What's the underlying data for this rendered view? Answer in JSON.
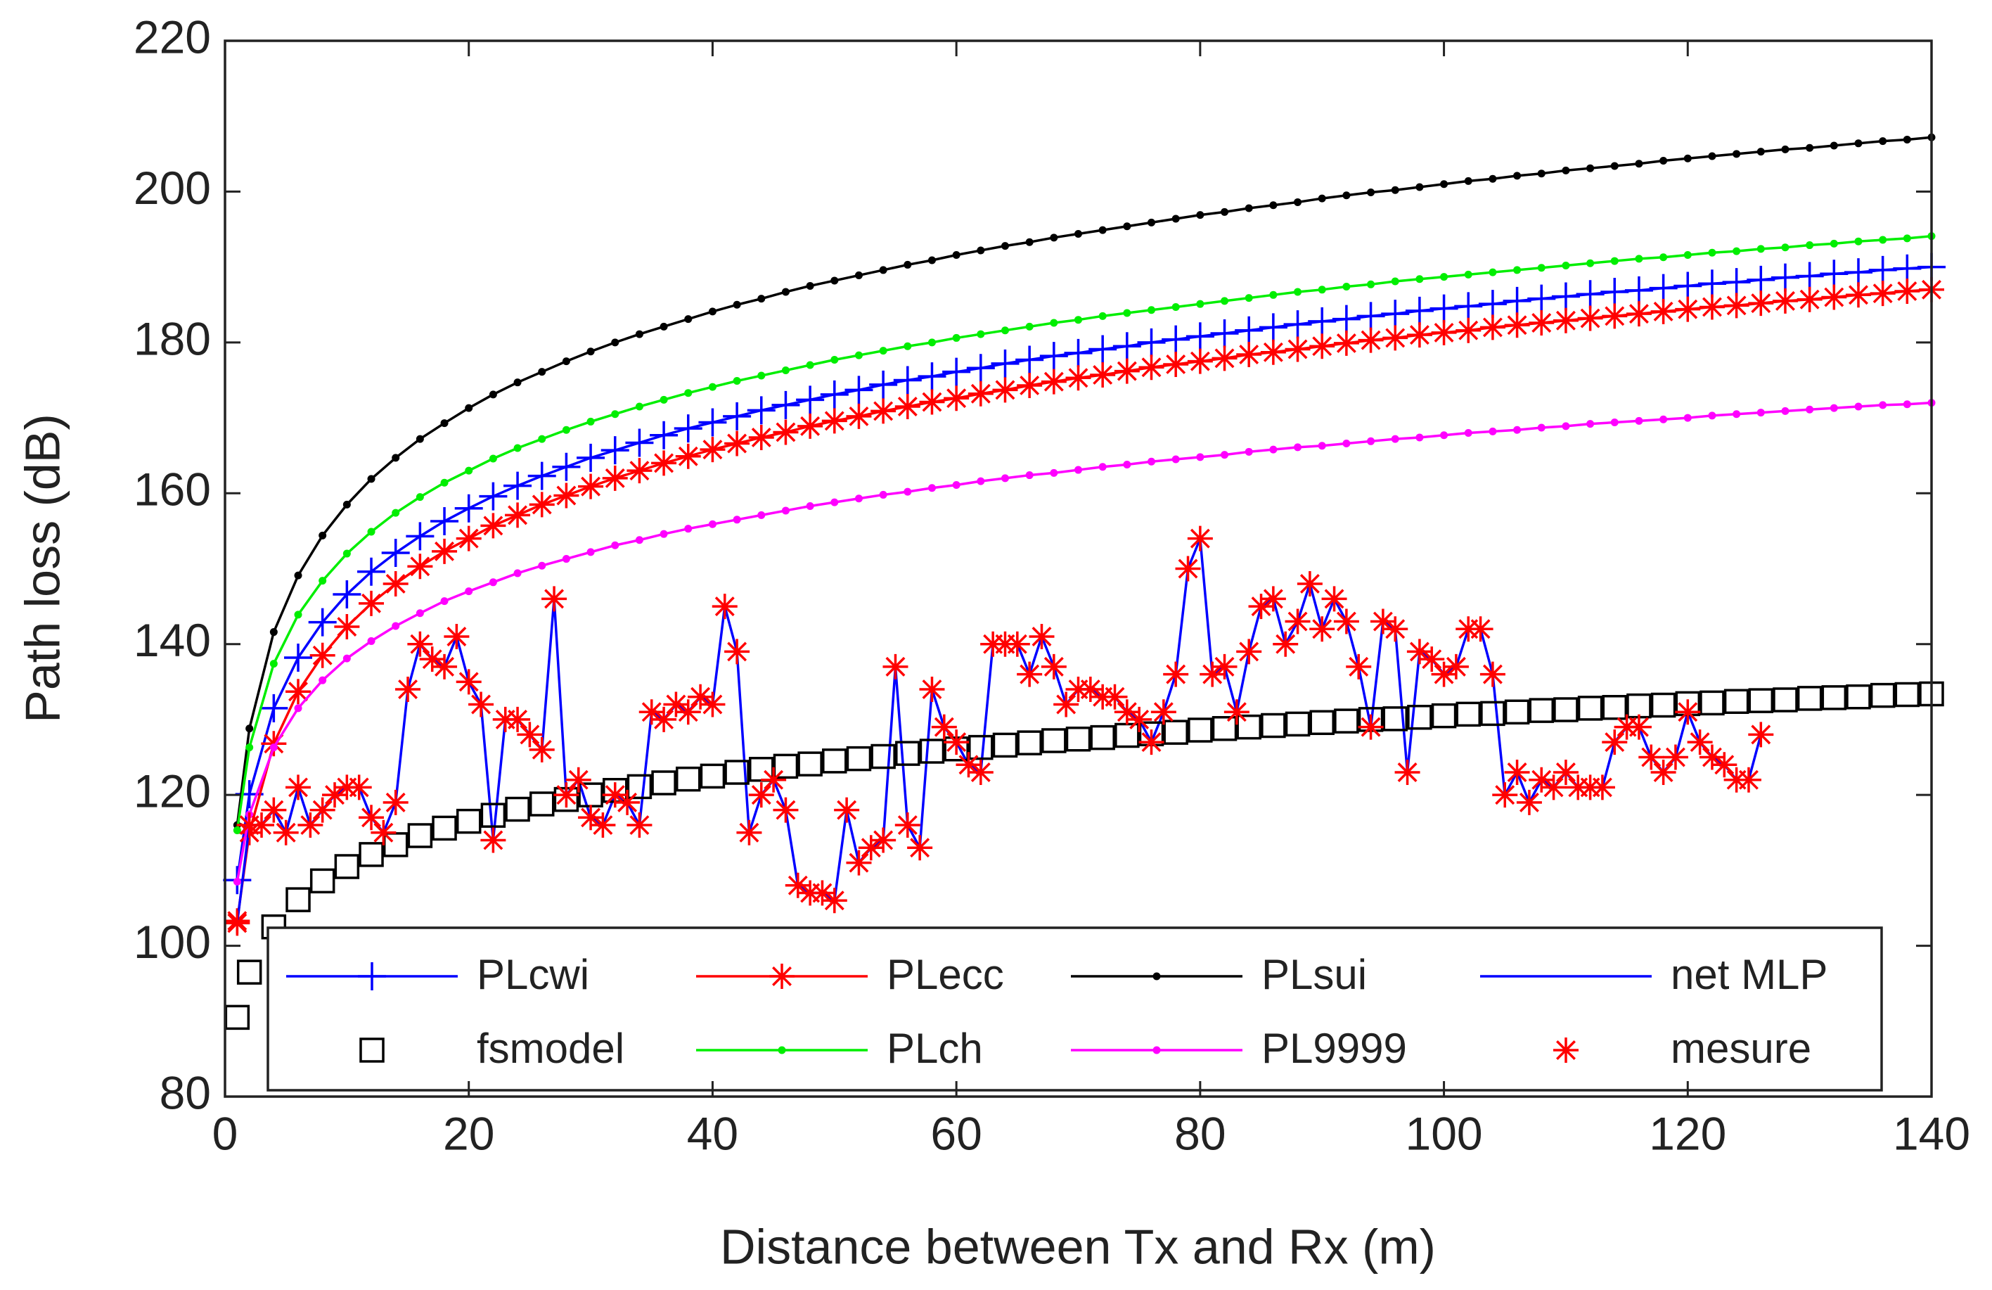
{
  "chart_data": {
    "type": "line",
    "x_label": "Distance between Tx and Rx (m)",
    "y_label": "Path loss (dB)",
    "xlim": [
      0,
      140
    ],
    "xticks": [
      0,
      20,
      40,
      60,
      80,
      100,
      120,
      140
    ],
    "ylim": [
      80,
      220
    ],
    "yticks": [
      80,
      100,
      120,
      140,
      160,
      180,
      200,
      220
    ],
    "grid": false,
    "legend": "bottom",
    "x": [
      1,
      2,
      4,
      6,
      8,
      10,
      12,
      14,
      16,
      18,
      20,
      22,
      24,
      26,
      28,
      30,
      32,
      34,
      36,
      38,
      40,
      42,
      44,
      46,
      48,
      50,
      52,
      54,
      56,
      58,
      60,
      62,
      64,
      66,
      68,
      70,
      72,
      74,
      76,
      78,
      80,
      82,
      84,
      86,
      88,
      90,
      92,
      94,
      96,
      98,
      100,
      102,
      104,
      106,
      108,
      110,
      112,
      114,
      116,
      118,
      120,
      122,
      124,
      126,
      128,
      130,
      132,
      134,
      136,
      138,
      140
    ],
    "series": [
      {
        "name": "PLcwi",
        "color": "#0000ff",
        "marker": "plus",
        "line": true,
        "values": [
          108.7,
          120.1,
          131.5,
          138.2,
          142.9,
          146.6,
          149.6,
          152.1,
          154.3,
          156.3,
          158.0,
          159.6,
          161.0,
          162.3,
          163.5,
          164.7,
          165.7,
          166.7,
          167.7,
          168.6,
          169.4,
          170.2,
          171.0,
          171.7,
          172.4,
          173.1,
          173.7,
          174.4,
          175.0,
          175.5,
          176.1,
          176.6,
          177.2,
          177.7,
          178.2,
          178.6,
          179.1,
          179.5,
          180.0,
          180.4,
          180.8,
          181.2,
          181.6,
          182.0,
          182.4,
          182.8,
          183.1,
          183.5,
          183.8,
          184.2,
          184.5,
          184.8,
          185.1,
          185.5,
          185.8,
          186.1,
          186.4,
          186.7,
          186.9,
          187.2,
          187.5,
          187.8,
          188.0,
          188.3,
          188.6,
          188.8,
          189.1,
          189.3,
          189.6,
          189.8,
          190.0
        ]
      },
      {
        "name": "PLecc",
        "color": "#ff0000",
        "marker": "asterisk",
        "line": true,
        "values": [
          103.3,
          115.0,
          126.8,
          133.7,
          138.5,
          142.3,
          145.4,
          148.0,
          150.3,
          152.3,
          154.0,
          155.7,
          157.1,
          158.5,
          159.7,
          160.9,
          162.0,
          163.0,
          164.0,
          164.9,
          165.8,
          166.6,
          167.4,
          168.1,
          168.9,
          169.6,
          170.2,
          170.9,
          171.5,
          172.1,
          172.6,
          173.2,
          173.7,
          174.3,
          174.8,
          175.3,
          175.7,
          176.2,
          176.7,
          177.1,
          177.5,
          177.9,
          178.4,
          178.7,
          179.1,
          179.5,
          179.9,
          180.3,
          180.6,
          181.0,
          181.3,
          181.6,
          182.0,
          182.3,
          182.6,
          182.9,
          183.2,
          183.5,
          183.8,
          184.1,
          184.4,
          184.7,
          184.9,
          185.2,
          185.5,
          185.7,
          186.0,
          186.3,
          186.5,
          186.8,
          187.0
        ]
      },
      {
        "name": "PLsui",
        "color": "#000000",
        "marker": "dot",
        "line": true,
        "values": [
          116.0,
          128.8,
          141.6,
          149.1,
          154.4,
          158.5,
          161.9,
          164.7,
          167.2,
          169.3,
          171.3,
          173.1,
          174.7,
          176.1,
          177.5,
          178.8,
          180.0,
          181.1,
          182.1,
          183.1,
          184.1,
          185.0,
          185.8,
          186.7,
          187.5,
          188.2,
          188.9,
          189.6,
          190.3,
          190.9,
          191.6,
          192.2,
          192.8,
          193.3,
          193.9,
          194.4,
          194.9,
          195.4,
          195.9,
          196.4,
          196.9,
          197.3,
          197.8,
          198.2,
          198.6,
          199.1,
          199.5,
          199.9,
          200.2,
          200.6,
          201.0,
          201.4,
          201.7,
          202.1,
          202.4,
          202.8,
          203.1,
          203.4,
          203.7,
          204.1,
          204.4,
          204.7,
          205.0,
          205.3,
          205.6,
          205.8,
          206.1,
          206.4,
          206.7,
          206.9,
          207.2
        ]
      },
      {
        "name": "net MLP",
        "color": "#0000ff",
        "marker": "none",
        "line": true,
        "x": [
          1,
          2,
          3,
          4,
          5,
          6,
          7,
          8,
          9,
          10,
          11,
          12,
          13,
          14,
          15,
          16,
          17,
          18,
          19,
          20,
          21,
          22,
          23,
          24,
          25,
          26,
          27,
          28,
          29,
          30,
          31,
          32,
          33,
          34,
          35,
          36,
          37,
          38,
          39,
          40,
          41,
          42,
          43,
          44,
          45,
          46,
          47,
          48,
          49,
          50,
          51,
          52,
          53,
          54,
          55,
          56,
          57,
          58,
          59,
          60,
          61,
          62,
          63,
          64,
          65,
          66,
          67,
          68,
          69,
          70,
          71,
          72,
          73,
          74,
          75,
          76,
          77,
          78,
          79,
          80,
          81,
          82,
          83,
          84,
          85,
          86,
          87,
          88,
          89,
          90,
          91,
          92,
          93,
          94,
          95,
          96,
          97,
          98,
          99,
          100,
          101,
          102,
          103,
          104,
          105,
          106,
          107,
          108,
          109,
          110,
          111,
          112,
          113,
          114,
          115,
          116,
          117,
          118,
          119,
          120,
          121,
          122,
          123,
          124,
          125,
          126
        ],
        "values": [
          103,
          116,
          116,
          118,
          115,
          121,
          116,
          118,
          120,
          121,
          121,
          117,
          115,
          119,
          134,
          140,
          138,
          137,
          141,
          135,
          132,
          114,
          130,
          130,
          128,
          126,
          146,
          120,
          122,
          117,
          116,
          120,
          119,
          116,
          131,
          130,
          132,
          131,
          133,
          132,
          145,
          139,
          115,
          120,
          122,
          118,
          108,
          107,
          107,
          106,
          118,
          111,
          113,
          114,
          137,
          116,
          113,
          134,
          129,
          127,
          124,
          123,
          140,
          140,
          140,
          136,
          141,
          137,
          132,
          134,
          134,
          133,
          133,
          131,
          130,
          127,
          131,
          136,
          150,
          154,
          136,
          137,
          131,
          139,
          145,
          146,
          140,
          143,
          148,
          142,
          146,
          143,
          137,
          129,
          143,
          142,
          123,
          139,
          138,
          136,
          137,
          142,
          142,
          136,
          120,
          123,
          119,
          122,
          121,
          123,
          121,
          121,
          121,
          127,
          129,
          129,
          125,
          123,
          125,
          131,
          127,
          125,
          124,
          122,
          122,
          128
        ]
      },
      {
        "name": "fsmodel",
        "color": "#000000",
        "marker": "square",
        "line": false,
        "values": [
          90.5,
          96.5,
          102.5,
          106.1,
          108.6,
          110.5,
          112.1,
          113.4,
          114.6,
          115.6,
          116.5,
          117.3,
          118.1,
          118.8,
          119.4,
          120.0,
          120.6,
          121.1,
          121.6,
          122.1,
          122.5,
          123.0,
          123.4,
          123.8,
          124.1,
          124.5,
          124.8,
          125.1,
          125.5,
          125.8,
          126.1,
          126.3,
          126.6,
          126.9,
          127.2,
          127.4,
          127.6,
          127.9,
          128.1,
          128.3,
          128.6,
          128.8,
          129.0,
          129.2,
          129.4,
          129.6,
          129.8,
          130.0,
          130.1,
          130.3,
          130.5,
          130.7,
          130.8,
          131.0,
          131.2,
          131.3,
          131.5,
          131.6,
          131.8,
          131.9,
          132.1,
          132.2,
          132.4,
          132.5,
          132.6,
          132.8,
          132.9,
          133.0,
          133.2,
          133.3,
          133.4
        ]
      },
      {
        "name": "PLch",
        "color": "#00ee00",
        "marker": "dot",
        "line": true,
        "values": [
          115.3,
          126.3,
          137.4,
          143.9,
          148.4,
          152.0,
          154.9,
          157.4,
          159.5,
          161.4,
          163.0,
          164.6,
          166.0,
          167.2,
          168.4,
          169.5,
          170.5,
          171.5,
          172.4,
          173.3,
          174.1,
          174.9,
          175.6,
          176.3,
          177.0,
          177.7,
          178.3,
          178.9,
          179.5,
          180.0,
          180.6,
          181.1,
          181.6,
          182.1,
          182.6,
          183.0,
          183.5,
          183.9,
          184.3,
          184.7,
          185.1,
          185.5,
          185.9,
          186.3,
          186.7,
          187.0,
          187.4,
          187.7,
          188.1,
          188.4,
          188.7,
          189.0,
          189.3,
          189.6,
          189.9,
          190.2,
          190.5,
          190.8,
          191.1,
          191.3,
          191.6,
          191.9,
          192.1,
          192.4,
          192.6,
          192.9,
          193.1,
          193.4,
          193.6,
          193.8,
          194.1
        ]
      },
      {
        "name": "PL9999",
        "color": "#ff00ff",
        "marker": "dot",
        "line": true,
        "values": [
          108.5,
          117.4,
          126.3,
          131.5,
          135.2,
          138.1,
          140.4,
          142.4,
          144.1,
          145.7,
          147.0,
          148.2,
          149.4,
          150.4,
          151.3,
          152.2,
          153.1,
          153.8,
          154.6,
          155.3,
          155.9,
          156.5,
          157.1,
          157.7,
          158.3,
          158.8,
          159.3,
          159.8,
          160.2,
          160.7,
          161.1,
          161.6,
          162.0,
          162.4,
          162.7,
          163.1,
          163.5,
          163.8,
          164.2,
          164.5,
          164.8,
          165.1,
          165.5,
          165.8,
          166.1,
          166.3,
          166.6,
          166.9,
          167.2,
          167.4,
          167.7,
          168.0,
          168.2,
          168.4,
          168.7,
          168.9,
          169.2,
          169.4,
          169.6,
          169.8,
          170.0,
          170.3,
          170.5,
          170.7,
          170.9,
          171.1,
          171.3,
          171.5,
          171.7,
          171.8,
          172.0
        ]
      },
      {
        "name": "mesure",
        "color": "#ff0000",
        "marker": "asterisk",
        "line": false,
        "x": [
          1,
          2,
          3,
          4,
          5,
          6,
          7,
          8,
          9,
          10,
          11,
          12,
          13,
          14,
          15,
          16,
          17,
          18,
          19,
          20,
          21,
          22,
          23,
          24,
          25,
          26,
          27,
          28,
          29,
          30,
          31,
          32,
          33,
          34,
          35,
          36,
          37,
          38,
          39,
          40,
          41,
          42,
          43,
          44,
          45,
          46,
          47,
          48,
          49,
          50,
          51,
          52,
          53,
          54,
          55,
          56,
          57,
          58,
          59,
          60,
          61,
          62,
          63,
          64,
          65,
          66,
          67,
          68,
          69,
          70,
          71,
          72,
          73,
          74,
          75,
          76,
          77,
          78,
          79,
          80,
          81,
          82,
          83,
          84,
          85,
          86,
          87,
          88,
          89,
          90,
          91,
          92,
          93,
          94,
          95,
          96,
          97,
          98,
          99,
          100,
          101,
          102,
          103,
          104,
          105,
          106,
          107,
          108,
          109,
          110,
          111,
          112,
          113,
          114,
          115,
          116,
          117,
          118,
          119,
          120,
          121,
          122,
          123,
          124,
          125,
          126
        ],
        "values": [
          103,
          116,
          116,
          118,
          115,
          121,
          116,
          118,
          120,
          121,
          121,
          117,
          115,
          119,
          134,
          140,
          138,
          137,
          141,
          135,
          132,
          114,
          130,
          130,
          128,
          126,
          146,
          120,
          122,
          117,
          116,
          120,
          119,
          116,
          131,
          130,
          132,
          131,
          133,
          132,
          145,
          139,
          115,
          120,
          122,
          118,
          108,
          107,
          107,
          106,
          118,
          111,
          113,
          114,
          137,
          116,
          113,
          134,
          129,
          127,
          124,
          123,
          140,
          140,
          140,
          136,
          141,
          137,
          132,
          134,
          134,
          133,
          133,
          131,
          130,
          127,
          131,
          136,
          150,
          154,
          136,
          137,
          131,
          139,
          145,
          146,
          140,
          143,
          148,
          142,
          146,
          143,
          137,
          129,
          143,
          142,
          123,
          139,
          138,
          136,
          137,
          142,
          142,
          136,
          120,
          123,
          119,
          122,
          121,
          123,
          121,
          121,
          121,
          127,
          129,
          129,
          125,
          123,
          125,
          131,
          127,
          125,
          124,
          122,
          122,
          128
        ]
      }
    ]
  }
}
